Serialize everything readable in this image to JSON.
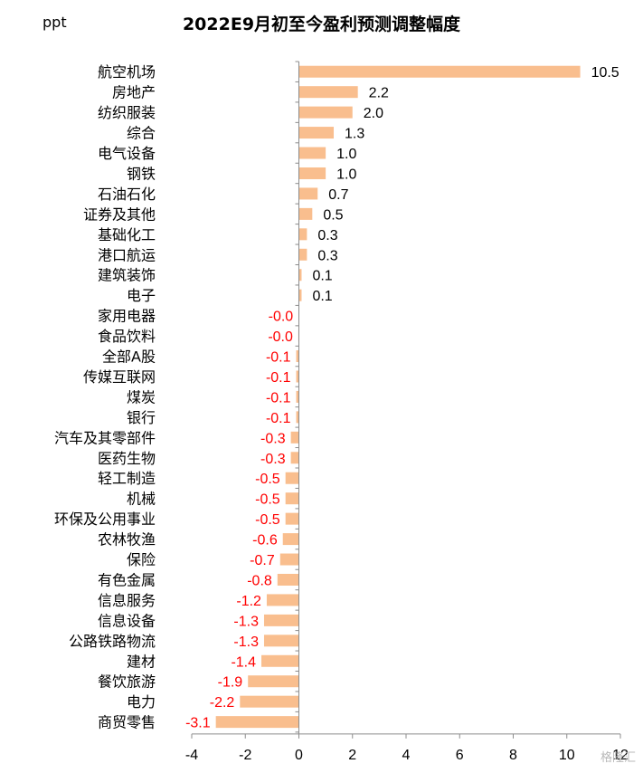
{
  "unit_label": "ppt",
  "watermark": "格隆汇",
  "colors": {
    "bar": "#F9BE8E",
    "positive_label": "#000000",
    "negative_label": "#FF0000",
    "axis": "#8C8C8C"
  },
  "chart_data": {
    "type": "bar",
    "orientation": "horizontal",
    "title": "2022E9月初至今盈利预测调整幅度",
    "xlim": [
      -4,
      12
    ],
    "x_ticks": [
      "-4",
      "-2",
      "0",
      "2",
      "4",
      "6",
      "8",
      "10",
      "12"
    ],
    "grid": false,
    "categories": [
      "航空机场",
      "房地产",
      "纺织服装",
      "综合",
      "电气设备",
      "钢铁",
      "石油石化",
      "证券及其他",
      "基础化工",
      "港口航运",
      "建筑装饰",
      "电子",
      "家用电器",
      "食品饮料",
      "全部A股",
      "传媒互联网",
      "煤炭",
      "银行",
      "汽车及其零部件",
      "医药生物",
      "轻工制造",
      "机械",
      "环保及公用事业",
      "农林牧渔",
      "保险",
      "有色金属",
      "信息服务",
      "信息设备",
      "公路铁路物流",
      "建材",
      "餐饮旅游",
      "电力",
      "商贸零售"
    ],
    "values": [
      10.5,
      2.2,
      2.0,
      1.3,
      1.0,
      1.0,
      0.7,
      0.5,
      0.3,
      0.3,
      0.1,
      0.1,
      -0.01,
      -0.02,
      -0.1,
      -0.1,
      -0.1,
      -0.1,
      -0.3,
      -0.3,
      -0.5,
      -0.5,
      -0.5,
      -0.6,
      -0.7,
      -0.8,
      -1.2,
      -1.3,
      -1.3,
      -1.4,
      -1.9,
      -2.2,
      -3.1
    ],
    "data_labels": [
      "10.5",
      "2.2",
      "2.0",
      "1.3",
      "1.0",
      "1.0",
      "0.7",
      "0.5",
      "0.3",
      "0.3",
      "0.1",
      "0.1",
      "-0.0",
      "-0.0",
      "-0.1",
      "-0.1",
      "-0.1",
      "-0.1",
      "-0.3",
      "-0.3",
      "-0.5",
      "-0.5",
      "-0.5",
      "-0.6",
      "-0.7",
      "-0.8",
      "-1.2",
      "-1.3",
      "-1.3",
      "-1.4",
      "-1.9",
      "-2.2",
      "-3.1"
    ]
  }
}
